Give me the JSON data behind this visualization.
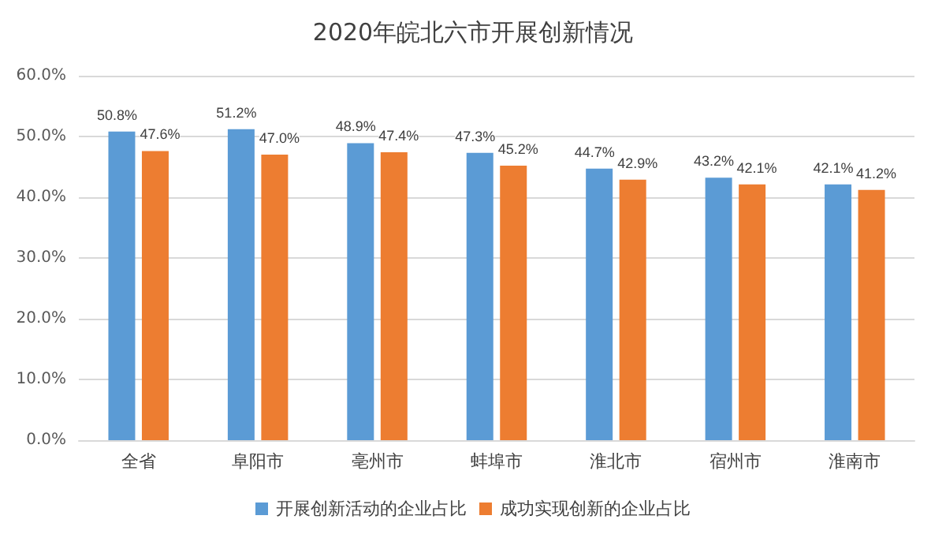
{
  "chart_data": {
    "type": "bar",
    "title": "2020年皖北六市开展创新情况",
    "categories": [
      "全省",
      "阜阳市",
      "亳州市",
      "蚌埠市",
      "淮北市",
      "宿州市",
      "淮南市"
    ],
    "series": [
      {
        "name": "开展创新活动的企业占比",
        "color": "#5b9bd5",
        "values": [
          50.8,
          51.2,
          48.9,
          47.3,
          44.7,
          43.2,
          42.1
        ],
        "value_labels": [
          "50.8%",
          "51.2%",
          "48.9%",
          "47.3%",
          "44.7%",
          "43.2%",
          "42.1%"
        ]
      },
      {
        "name": "成功实现创新的企业占比",
        "color": "#ed7d31",
        "values": [
          47.6,
          47.0,
          47.4,
          45.2,
          42.9,
          42.1,
          41.2
        ],
        "value_labels": [
          "47.6%",
          "47.0%",
          "47.4%",
          "45.2%",
          "42.9%",
          "42.1%",
          "41.2%"
        ]
      }
    ],
    "ylim": [
      0,
      60
    ],
    "yticks": [
      {
        "value": 0,
        "label": "0.0%"
      },
      {
        "value": 10,
        "label": "10.0%"
      },
      {
        "value": 20,
        "label": "20.0%"
      },
      {
        "value": 30,
        "label": "30.0%"
      },
      {
        "value": 40,
        "label": "40.0%"
      },
      {
        "value": 50,
        "label": "50.0%"
      },
      {
        "value": 60,
        "label": "60.0%"
      }
    ],
    "grid": "y",
    "legend": "bottom"
  }
}
